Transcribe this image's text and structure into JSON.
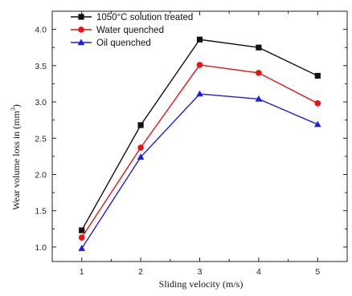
{
  "chart_data": {
    "type": "line",
    "xlabel": "Sliding velocity (m/s)",
    "ylabel": "Wear volume loss in (mm³)",
    "ylabel_main": "Wear volume loss in (mm",
    "ylabel_sup": "3",
    "ylabel_end": ")",
    "x": [
      1,
      2,
      3,
      4,
      5
    ],
    "xlim": [
      0.5,
      5.5
    ],
    "ylim": [
      0.8,
      4.25
    ],
    "xticks": [
      "1",
      "2",
      "3",
      "4",
      "5"
    ],
    "yticks": [
      "1.0",
      "1.5",
      "2.0",
      "2.5",
      "3.0",
      "3.5",
      "4.0"
    ],
    "grid": false,
    "legend_position": "top-left",
    "series": [
      {
        "name": "1050°C solution treated",
        "color": "#111111",
        "marker": "square",
        "values": [
          1.23,
          2.68,
          3.86,
          3.75,
          3.36
        ]
      },
      {
        "name": "Water quenched",
        "color": "#ee1111",
        "marker": "circle",
        "values": [
          1.13,
          2.37,
          3.51,
          3.4,
          2.98
        ]
      },
      {
        "name": "Oil quenched",
        "color": "#1b1bee",
        "marker": "triangle",
        "values": [
          0.98,
          2.24,
          3.11,
          3.04,
          2.69
        ]
      }
    ]
  }
}
